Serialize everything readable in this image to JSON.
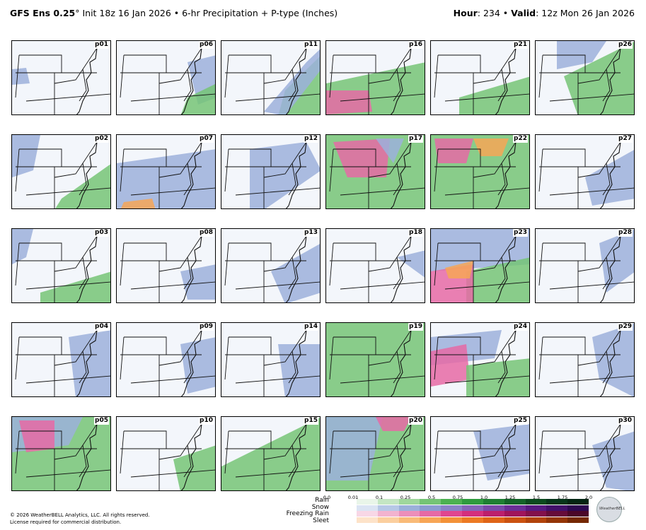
{
  "header": {
    "model": "GFS Ens 0.25",
    "degree": "°",
    "init": " Init 18z 16 Jan 2026 • 6-hr Precipitation + P-type (Inches)",
    "hour_label": "Hour",
    "hour_value": ": 234 • ",
    "valid_label": "Valid",
    "valid_value": ": 12z Mon 26 Jan 2026"
  },
  "panels": [
    [
      "p01",
      "p06",
      "p11",
      "p16",
      "p21",
      "p26"
    ],
    [
      "p02",
      "p07",
      "p12",
      "p17",
      "p22",
      "p27"
    ],
    [
      "p03",
      "p08",
      "p13",
      "p18",
      "p23",
      "p28"
    ],
    [
      "p04",
      "p09",
      "p14",
      "p19",
      "p24",
      "p29"
    ],
    [
      "p05",
      "p10",
      "p15",
      "p20",
      "p25",
      "p30"
    ]
  ],
  "legend": {
    "ticks": [
      "0.0",
      "0.01",
      "0.1",
      "0.25",
      "0.5",
      "0.75",
      "1.0",
      "1.25",
      "1.5",
      "1.75",
      "2.0"
    ],
    "ptype_labels": [
      "Rain",
      "Snow",
      "Freezing Rain",
      "Sleet"
    ],
    "colors": {
      "rain": [
        "#e9f5e9",
        "#c4e6c3",
        "#9fd79c",
        "#75c475",
        "#4cb150",
        "#2f9b3e",
        "#1f7f32",
        "#136328",
        "#0b4a1e",
        "#06351a",
        "#032512"
      ],
      "snow": [
        "#dbe4f3",
        "#b7c8e6",
        "#9cb0da",
        "#8d9bd0",
        "#8a82c6",
        "#8565b8",
        "#7a4aa8",
        "#6b2e96",
        "#571a80",
        "#42106a",
        "#2d0850"
      ],
      "freezing": [
        "#f8d7e6",
        "#f2b3cf",
        "#ec8fba",
        "#e66aa5",
        "#e0468f",
        "#d42f7d",
        "#bc1f6c",
        "#a0145b",
        "#83104b",
        "#660b3a",
        "#4b0629"
      ],
      "sleet": [
        "#fde3c9",
        "#fbcf9f",
        "#f9bb78",
        "#f7a656",
        "#f39238",
        "#ec7a24",
        "#df6418",
        "#cb5210",
        "#b2430b",
        "#943507",
        "#752803"
      ]
    }
  },
  "footer": {
    "copyright": "© 2026 WeatherBELL Analytics, LLC. All rights reserved.",
    "license": "License required for commercial distribution.",
    "logo_text": "WeatherBELL"
  }
}
